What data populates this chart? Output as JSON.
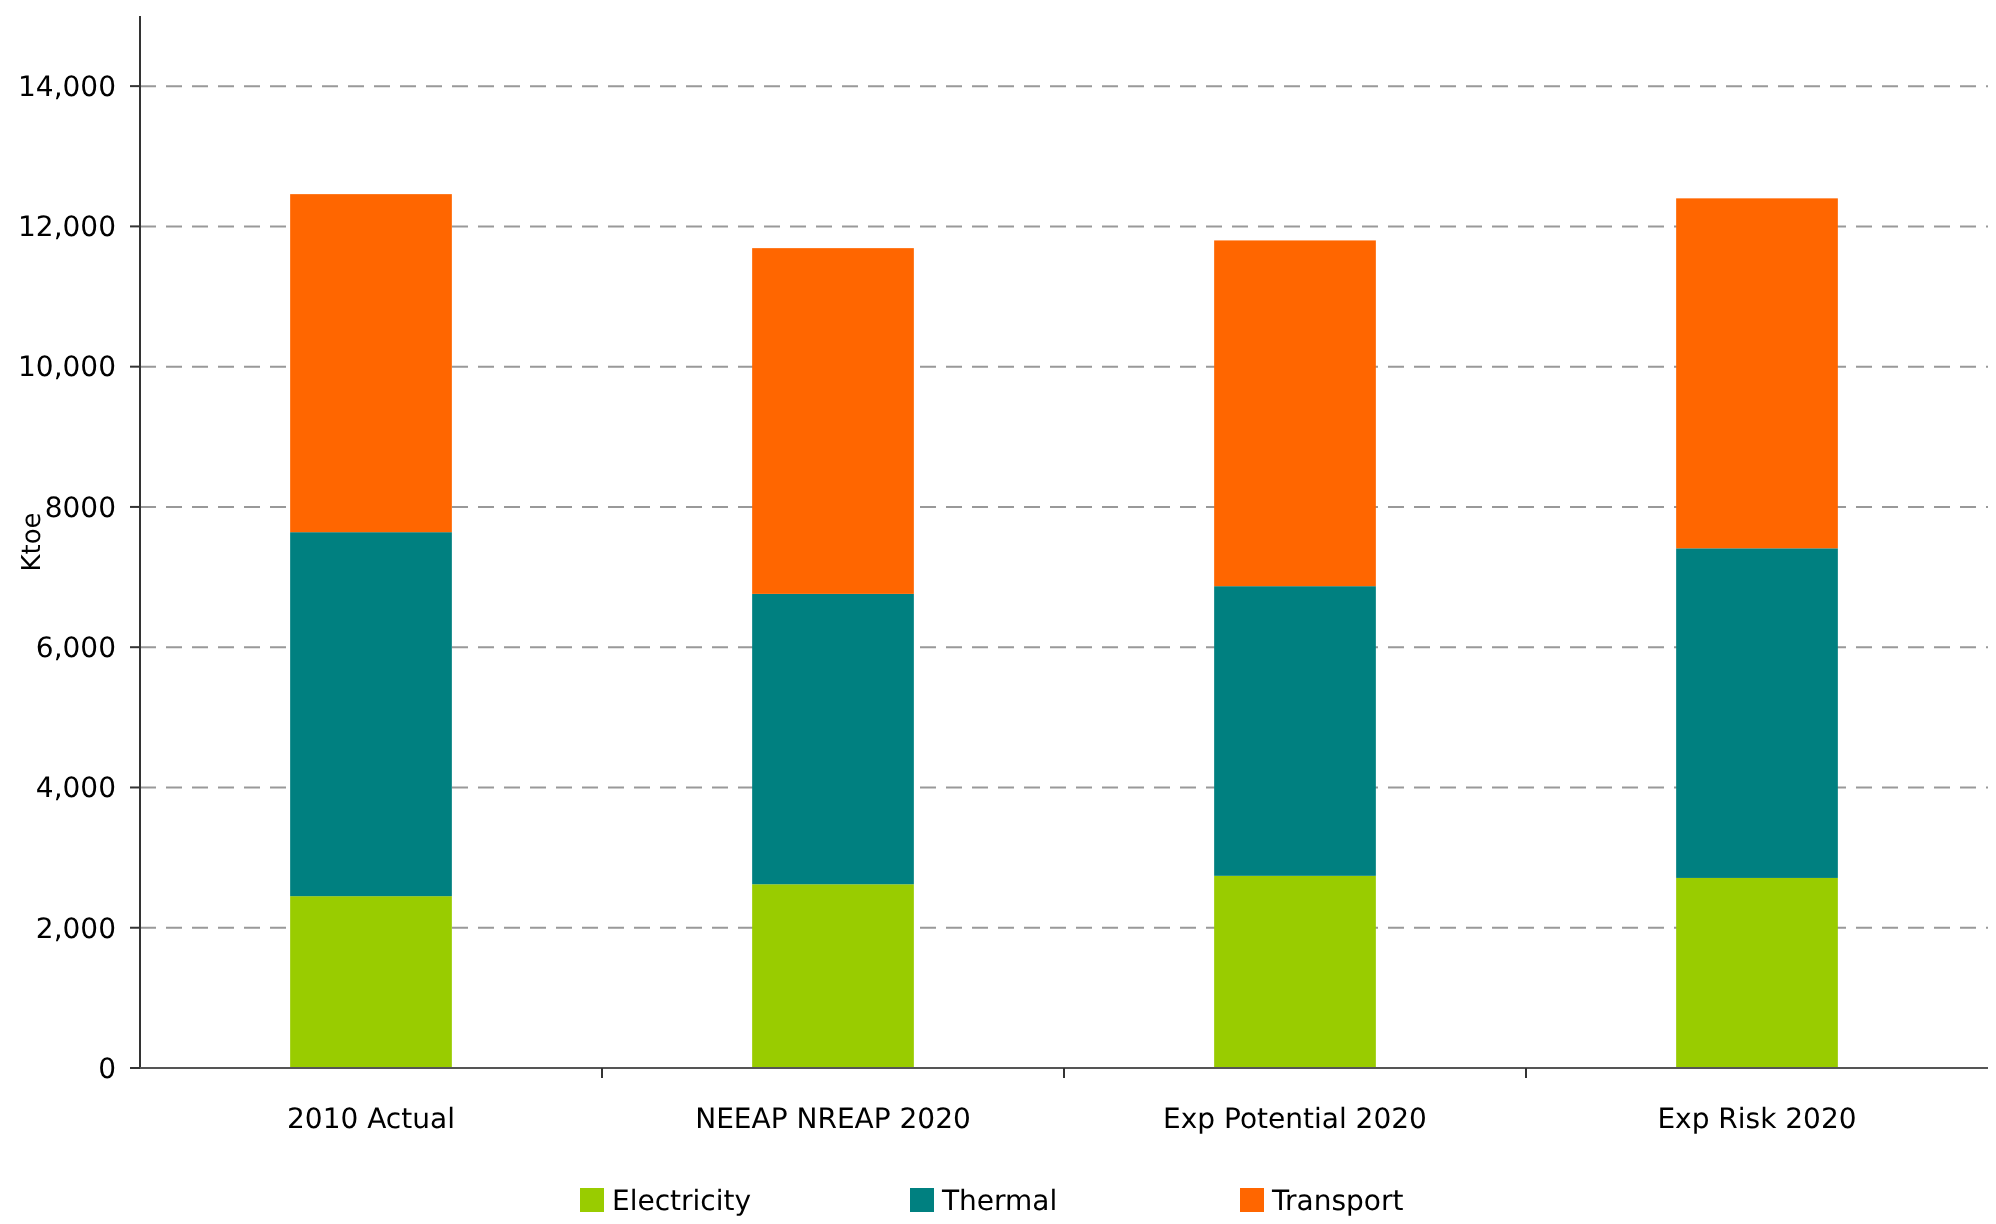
{
  "chart_data": {
    "type": "bar",
    "stacked": true,
    "ylabel": "Ktoe",
    "categories": [
      "2010 Actual",
      "NEEAP NREAP 2020",
      "Exp Potential 2020",
      "Exp Risk 2020"
    ],
    "series": [
      {
        "name": "Electricity",
        "color": "#99cc00",
        "values": [
          2450,
          2620,
          2740,
          2710
        ]
      },
      {
        "name": "Thermal",
        "color": "#008080",
        "values": [
          5190,
          4140,
          4130,
          4700
        ]
      },
      {
        "name": "Transport",
        "color": "#ff6600",
        "values": [
          4820,
          4930,
          4930,
          4990
        ]
      }
    ],
    "ylim": [
      0,
      15000
    ],
    "yticks": [
      {
        "value": 0,
        "label": "0"
      },
      {
        "value": 2000,
        "label": "2,000"
      },
      {
        "value": 4000,
        "label": "4,000"
      },
      {
        "value": 6000,
        "label": "6,000"
      },
      {
        "value": 8000,
        "label": "8000"
      },
      {
        "value": 10000,
        "label": "10,000"
      },
      {
        "value": 12000,
        "label": "12,000"
      },
      {
        "value": 14000,
        "label": "14,000"
      }
    ],
    "grid": "y",
    "legend": "bottom"
  }
}
